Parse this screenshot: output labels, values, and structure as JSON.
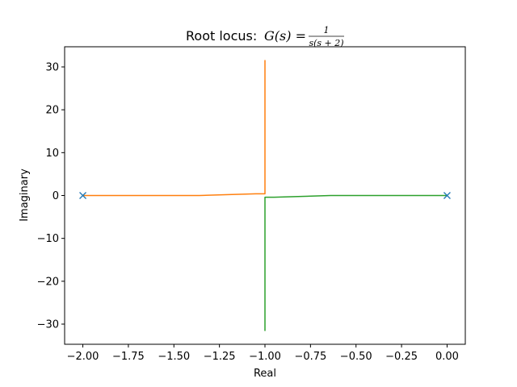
{
  "chart_data": {
    "type": "line",
    "title": {
      "prefix": "Root locus: ",
      "func": "G(s) = ",
      "numerator": "1",
      "denominator": "s(s + 2)"
    },
    "xlabel": "Real",
    "ylabel": "Imaginary",
    "xlim": [
      -2.1,
      0.1
    ],
    "ylim": [
      -34.7,
      34.7
    ],
    "xticks": [
      -2.0,
      -1.75,
      -1.5,
      -1.25,
      -1.0,
      -0.75,
      -0.5,
      -0.25,
      0.0
    ],
    "xtick_labels": [
      "−2.00",
      "−1.75",
      "−1.50",
      "−1.25",
      "−1.00",
      "−0.75",
      "−0.50",
      "−0.25",
      "0.00"
    ],
    "yticks": [
      -30,
      -20,
      -10,
      0,
      10,
      20,
      30
    ],
    "ytick_labels": [
      "−30",
      "−20",
      "−10",
      "0",
      "10",
      "20",
      "30"
    ],
    "grid": false,
    "series": [
      {
        "color": "#ff7f0e",
        "points": [
          [
            -2.0,
            0.0
          ],
          [
            -1.9,
            0.0
          ],
          [
            -1.6,
            0.0
          ],
          [
            -1.36,
            0.0
          ],
          [
            -1.2,
            0.2
          ],
          [
            -1.05,
            0.4
          ],
          [
            -1.0,
            0.4
          ],
          [
            -1.0,
            31.6
          ]
        ]
      },
      {
        "color": "#2ca02c",
        "points": [
          [
            0.0,
            0.0
          ],
          [
            -0.1,
            0.0
          ],
          [
            -0.4,
            0.0
          ],
          [
            -0.64,
            0.0
          ],
          [
            -0.8,
            -0.2
          ],
          [
            -0.95,
            -0.4
          ],
          [
            -1.0,
            -0.4
          ],
          [
            -1.0,
            -31.6
          ]
        ]
      }
    ],
    "poles": {
      "color": "#1f77b4",
      "marker": "x",
      "points": [
        [
          -2.0,
          0.0
        ],
        [
          0.0,
          0.0
        ]
      ]
    }
  }
}
